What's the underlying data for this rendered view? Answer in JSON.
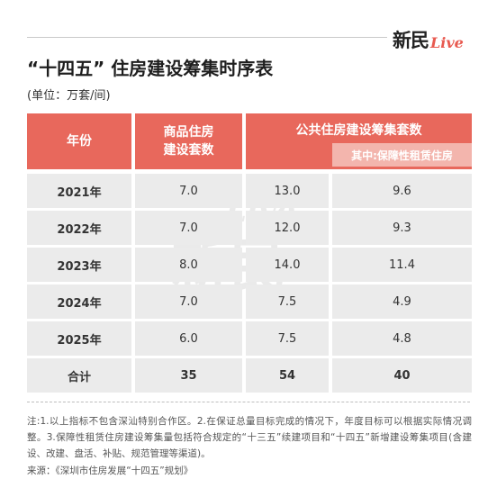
{
  "brand": {
    "name_cn": "新民",
    "name_live": "Live"
  },
  "title": "“十四五” 住房建设筹集时序表",
  "unit": "(单位：万套/间)",
  "table": {
    "headers": {
      "year": "年份",
      "commercial": "商品住房\n建设套数",
      "public": "公共住房建设筹集套数",
      "rental": "其中:保障性租赁住房"
    },
    "rows": [
      {
        "year": "2021年",
        "commercial": "7.0",
        "public": "13.0",
        "rental": "9.6"
      },
      {
        "year": "2022年",
        "commercial": "7.0",
        "public": "12.0",
        "rental": "9.3"
      },
      {
        "year": "2023年",
        "commercial": "8.0",
        "public": "14.0",
        "rental": "11.4"
      },
      {
        "year": "2024年",
        "commercial": "7.0",
        "public": "7.5",
        "rental": "4.9"
      },
      {
        "year": "2025年",
        "commercial": "6.0",
        "public": "7.5",
        "rental": "4.8"
      },
      {
        "year": "合计",
        "commercial": "35",
        "public": "54",
        "rental": "40"
      }
    ]
  },
  "note": "注:1.以上指标不包含深汕特别合作区。2.在保证总量目标完成的情况下，年度目标可以根据实际情况调整。3.保障性租赁住房建设筹集量包括符合规定的“十三五”续建项目和“十四五”新增建设筹集项目(含建设、改建、盘活、补贴、规范管理等渠道)。",
  "source": "来源：《深圳市住房发展“十四五”规划》",
  "colors": {
    "header": "#e8685c",
    "sub_header": "#f3b5ad",
    "body": "#ebebeb",
    "accent": "#e85a50"
  }
}
